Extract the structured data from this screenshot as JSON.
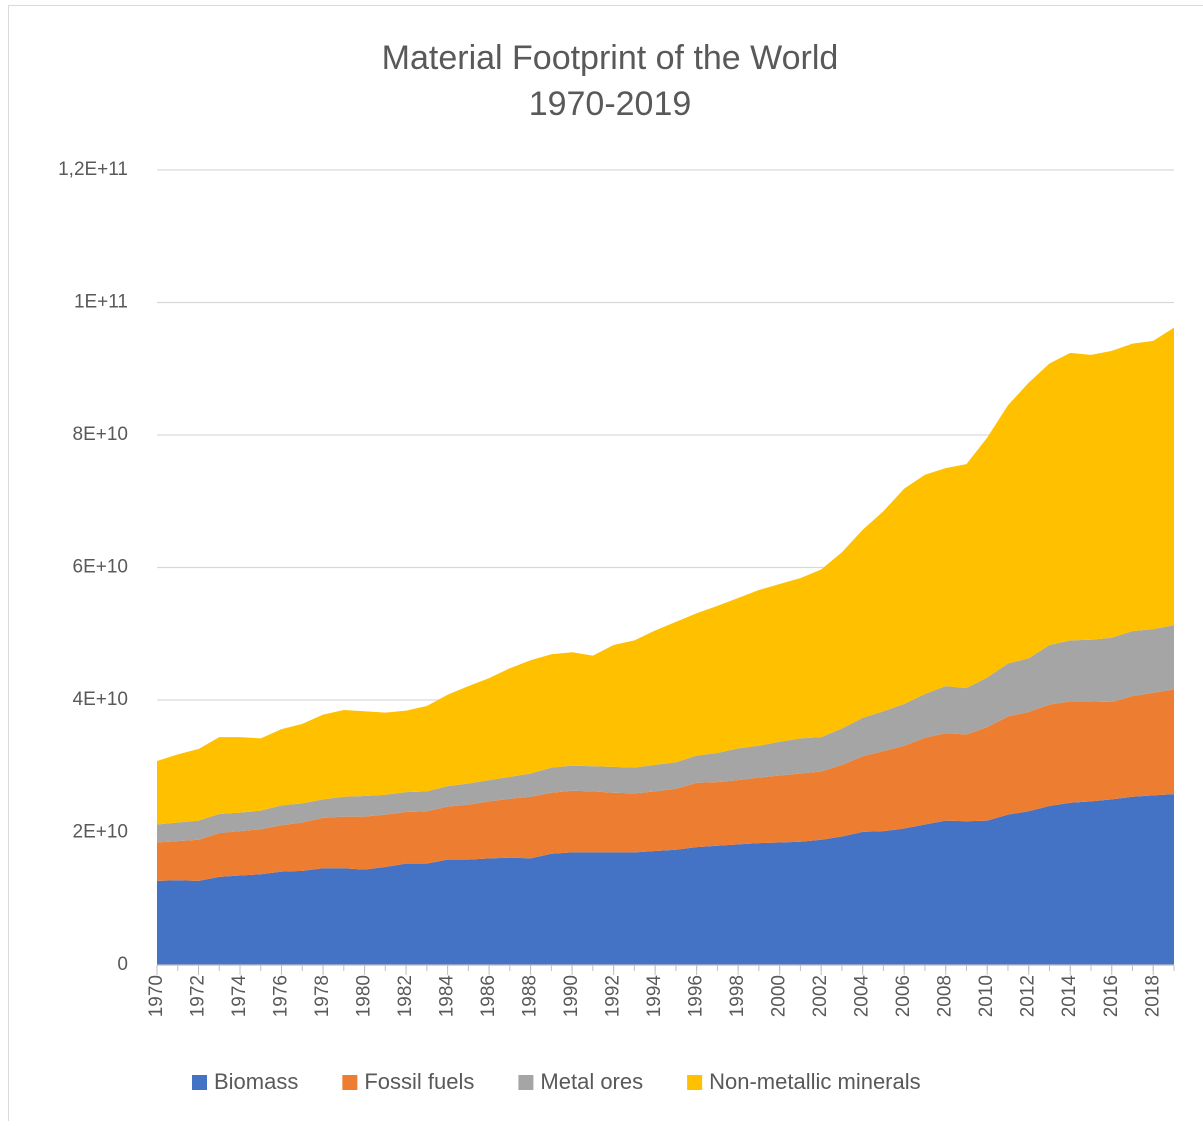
{
  "chart_data": {
    "type": "stacked_area",
    "title": "Material Footprint of the World",
    "subtitle": "1970-2019",
    "x": [
      1970,
      1971,
      1972,
      1973,
      1974,
      1975,
      1976,
      1977,
      1978,
      1979,
      1980,
      1981,
      1982,
      1983,
      1984,
      1985,
      1986,
      1987,
      1988,
      1989,
      1990,
      1991,
      1992,
      1993,
      1994,
      1995,
      1996,
      1997,
      1998,
      1999,
      2000,
      2001,
      2002,
      2003,
      2004,
      2005,
      2006,
      2007,
      2008,
      2009,
      2010,
      2011,
      2012,
      2013,
      2014,
      2015,
      2016,
      2017,
      2018,
      2019
    ],
    "xlim": [
      1970,
      2019
    ],
    "xticks": [
      1970,
      1972,
      1974,
      1976,
      1978,
      1980,
      1982,
      1984,
      1986,
      1988,
      1990,
      1992,
      1994,
      1996,
      1998,
      2000,
      2002,
      2004,
      2006,
      2008,
      2010,
      2012,
      2014,
      2016,
      2018
    ],
    "ylim": [
      0,
      120000000000.0
    ],
    "yticks": [
      0,
      {
        "value": 20000000000.0,
        "label": "2E+10"
      },
      {
        "value": 40000000000.0,
        "label": "4E+10"
      },
      {
        "value": 60000000000.0,
        "label": "6E+10"
      },
      {
        "value": 80000000000.0,
        "label": "8E+10"
      },
      {
        "value": 100000000000.0,
        "label": "1E+11"
      },
      {
        "value": 120000000000.0,
        "label": "1,2E+11"
      }
    ],
    "grid": true,
    "legend": "bottom",
    "series": [
      {
        "name": "Biomass",
        "color": "#4472c4",
        "values": [
          12700000000.0,
          12800000000.0,
          12700000000.0,
          13300000000.0,
          13500000000.0,
          13700000000.0,
          14100000000.0,
          14200000000.0,
          14600000000.0,
          14600000000.0,
          14400000000.0,
          14800000000.0,
          15300000000.0,
          15300000000.0,
          15900000000.0,
          15900000000.0,
          16100000000.0,
          16200000000.0,
          16100000000.0,
          16800000000.0,
          17000000000.0,
          17000000000.0,
          17000000000.0,
          17000000000.0,
          17200000000.0,
          17400000000.0,
          17800000000.0,
          18000000000.0,
          18200000000.0,
          18400000000.0,
          18500000000.0,
          18600000000.0,
          18900000000.0,
          19400000000.0,
          20100000000.0,
          20200000000.0,
          20600000000.0,
          21200000000.0,
          21800000000.0,
          21700000000.0,
          21800000000.0,
          22700000000.0,
          23200000000.0,
          24000000000.0,
          24500000000.0,
          24700000000.0,
          25000000000.0,
          25400000000.0,
          25600000000.0,
          25800000000.0
        ]
      },
      {
        "name": "Fossil fuels",
        "color": "#ed7d31",
        "values": [
          5800000000.0,
          5900000000.0,
          6200000000.0,
          6600000000.0,
          6700000000.0,
          6800000000.0,
          7000000000.0,
          7300000000.0,
          7600000000.0,
          7800000000.0,
          8000000000.0,
          7900000000.0,
          7800000000.0,
          7900000000.0,
          8000000000.0,
          8300000000.0,
          8600000000.0,
          8900000000.0,
          9300000000.0,
          9200000000.0,
          9300000000.0,
          9200000000.0,
          9000000000.0,
          8900000000.0,
          9000000000.0,
          9200000000.0,
          9700000000.0,
          9600000000.0,
          9700000000.0,
          9900000000.0,
          10100000000.0,
          10300000000.0,
          10300000000.0,
          10800000000.0,
          11400000000.0,
          12100000000.0,
          12500000000.0,
          13100000000.0,
          13200000000.0,
          13100000000.0,
          14100000000.0,
          14800000000.0,
          15000000000.0,
          15300000000.0,
          15300000000.0,
          15100000000.0,
          14700000000.0,
          15200000000.0,
          15500000000.0,
          15800000000.0
        ]
      },
      {
        "name": "Metal ores",
        "color": "#a5a5a5",
        "values": [
          2700000000.0,
          2800000000.0,
          2900000000.0,
          2900000000.0,
          2800000000.0,
          2800000000.0,
          3000000000.0,
          2900000000.0,
          2800000000.0,
          3000000000.0,
          3100000000.0,
          3000000000.0,
          3000000000.0,
          3000000000.0,
          3100000000.0,
          3200000000.0,
          3200000000.0,
          3300000000.0,
          3500000000.0,
          3800000000.0,
          3800000000.0,
          3800000000.0,
          3900000000.0,
          3900000000.0,
          4000000000.0,
          4000000000.0,
          4100000000.0,
          4400000000.0,
          4800000000.0,
          4800000000.0,
          5100000000.0,
          5300000000.0,
          5200000000.0,
          5500000000.0,
          5800000000.0,
          6000000000.0,
          6300000000.0,
          6600000000.0,
          7100000000.0,
          7000000000.0,
          7500000000.0,
          8000000000.0,
          8100000000.0,
          9000000000.0,
          9200000000.0,
          9300000000.0,
          9700000000.0,
          9800000000.0,
          9600000000.0,
          9700000000.0
        ]
      },
      {
        "name": "Non-metallic minerals",
        "color": "#ffc000",
        "values": [
          9600000000.0,
          10300000000.0,
          10800000000.0,
          11600000000.0,
          11400000000.0,
          10900000000.0,
          11500000000.0,
          12000000000.0,
          12800000000.0,
          13100000000.0,
          12800000000.0,
          12400000000.0,
          12300000000.0,
          12900000000.0,
          13800000000.0,
          14700000000.0,
          15400000000.0,
          16400000000.0,
          17100000000.0,
          17100000000.0,
          17100000000.0,
          16700000000.0,
          18400000000.0,
          19200000000.0,
          20300000000.0,
          21200000000.0,
          21500000000.0,
          22200000000.0,
          22700000000.0,
          23500000000.0,
          23800000000.0,
          24200000000.0,
          25300000000.0,
          26600000000.0,
          28400000000.0,
          30200000000.0,
          32500000000.0,
          33100000000.0,
          32900000000.0,
          33800000000.0,
          36200000000.0,
          39000000000.0,
          41600000000.0,
          42500000000.0,
          43400000000.0,
          43000000000.0,
          43300000000.0,
          43400000000.0,
          43500000000.0,
          44900000000.0
        ]
      }
    ]
  }
}
